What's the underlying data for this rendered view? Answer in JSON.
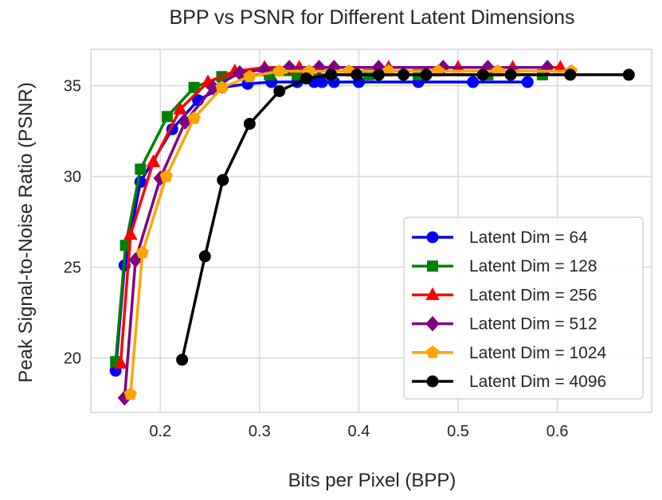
{
  "chart_data": {
    "type": "line",
    "title": "BPP vs PSNR for Different Latent Dimensions",
    "xlabel": "Bits per Pixel (BPP)",
    "ylabel": "Peak Signal-to-Noise Ratio (PSNR)",
    "xlim": [
      0.13,
      0.695
    ],
    "ylim": [
      17.0,
      37.0
    ],
    "xticks": [
      0.2,
      0.3,
      0.4,
      0.5,
      0.6
    ],
    "xtick_labels": [
      "0.2",
      "0.3",
      "0.4",
      "0.5",
      "0.6"
    ],
    "yticks": [
      20,
      25,
      30,
      35
    ],
    "ytick_labels": [
      "20",
      "25",
      "30",
      "35"
    ],
    "grid": true,
    "legend_position": "lower-right",
    "series": [
      {
        "name": "Latent Dim = 64",
        "color": "#0000ff",
        "marker": "circle",
        "x": [
          0.155,
          0.164,
          0.18,
          0.212,
          0.238,
          0.262,
          0.288,
          0.312,
          0.338,
          0.355,
          0.363,
          0.375,
          0.4,
          0.46,
          0.515,
          0.57
        ],
        "y": [
          19.3,
          25.1,
          29.7,
          32.6,
          34.2,
          34.9,
          35.1,
          35.2,
          35.2,
          35.2,
          35.2,
          35.2,
          35.2,
          35.2,
          35.2,
          35.2
        ]
      },
      {
        "name": "Latent Dim = 128",
        "color": "#008000",
        "marker": "square",
        "x": [
          0.155,
          0.165,
          0.18,
          0.207,
          0.234,
          0.262,
          0.287,
          0.31,
          0.338,
          0.372,
          0.41,
          0.46,
          0.53,
          0.585
        ],
        "y": [
          19.8,
          26.2,
          30.4,
          33.3,
          34.9,
          35.5,
          35.6,
          35.6,
          35.6,
          35.6,
          35.6,
          35.6,
          35.6,
          35.6
        ]
      },
      {
        "name": "Latent Dim = 256",
        "color": "#ff0000",
        "marker": "triangle",
        "x": [
          0.16,
          0.17,
          0.193,
          0.22,
          0.248,
          0.275,
          0.305,
          0.34,
          0.375,
          0.43,
          0.5,
          0.555,
          0.603
        ],
        "y": [
          19.7,
          26.8,
          30.8,
          33.7,
          35.2,
          35.8,
          36.0,
          36.0,
          36.0,
          36.0,
          36.0,
          36.0,
          36.0
        ]
      },
      {
        "name": "Latent Dim = 512",
        "color": "#800080",
        "marker": "diamond",
        "x": [
          0.164,
          0.175,
          0.2,
          0.225,
          0.253,
          0.28,
          0.305,
          0.33,
          0.36,
          0.375,
          0.42,
          0.485,
          0.53,
          0.59
        ],
        "y": [
          17.8,
          25.4,
          29.9,
          33.0,
          34.9,
          35.7,
          35.9,
          36.0,
          36.0,
          36.0,
          36.0,
          36.0,
          36.0,
          36.0
        ]
      },
      {
        "name": "Latent Dim = 1024",
        "color": "#ffa500",
        "marker": "pentagon",
        "x": [
          0.17,
          0.182,
          0.206,
          0.234,
          0.262,
          0.29,
          0.32,
          0.35,
          0.39,
          0.43,
          0.48,
          0.54,
          0.614
        ],
        "y": [
          18.0,
          25.8,
          30.0,
          33.2,
          34.9,
          35.5,
          35.8,
          35.8,
          35.8,
          35.8,
          35.8,
          35.8,
          35.8
        ]
      },
      {
        "name": "Latent Dim = 4096",
        "color": "#000000",
        "marker": "circle",
        "x": [
          0.222,
          0.245,
          0.263,
          0.29,
          0.32,
          0.347,
          0.372,
          0.398,
          0.42,
          0.445,
          0.468,
          0.525,
          0.553,
          0.613,
          0.672
        ],
        "y": [
          19.9,
          25.6,
          29.8,
          32.9,
          34.7,
          35.4,
          35.6,
          35.6,
          35.6,
          35.6,
          35.6,
          35.6,
          35.6,
          35.6,
          35.6
        ]
      }
    ]
  }
}
